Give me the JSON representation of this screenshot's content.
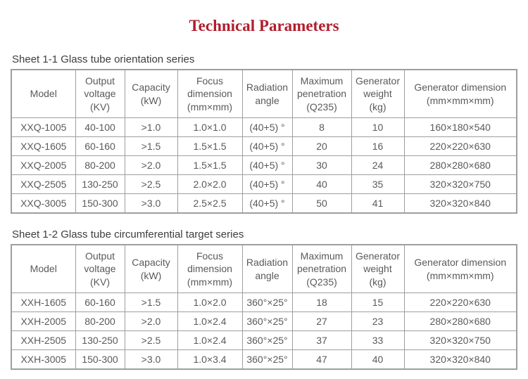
{
  "title": "Technical Parameters",
  "colors": {
    "title": "#b01e2e",
    "table_text": "#5a5a5a",
    "table_border": "#9e9e9e",
    "caption_text": "#3d3d3d",
    "background": "#ffffff"
  },
  "tables": [
    {
      "id": "sheet-1-1",
      "caption": "Sheet 1-1 Glass tube orientation series",
      "columns": [
        {
          "id": "model",
          "lines": [
            "Model"
          ]
        },
        {
          "id": "output-voltage",
          "lines": [
            "Output",
            "voltage",
            "(KV)"
          ]
        },
        {
          "id": "capacity",
          "lines": [
            "Capacity",
            "(kW)"
          ]
        },
        {
          "id": "focus-dimension",
          "lines": [
            "Focus",
            "dimension",
            "(mm×mm)"
          ]
        },
        {
          "id": "radiation-angle",
          "lines": [
            "Radiation",
            "angle"
          ]
        },
        {
          "id": "maximum-penetration",
          "lines": [
            "Maximum",
            "penetration",
            "(Q235)"
          ]
        },
        {
          "id": "generator-weight",
          "lines": [
            "Generator",
            "weight",
            "(kg)"
          ]
        },
        {
          "id": "generator-dimension",
          "lines": [
            "Generator dimension",
            "(mm×mm×mm)"
          ]
        }
      ],
      "rows": [
        [
          "XXQ-1005",
          "40-100",
          ">1.0",
          "1.0×1.0",
          "(40+5) °",
          "8",
          "10",
          "160×180×540"
        ],
        [
          "XXQ-1605",
          "60-160",
          ">1.5",
          "1.5×1.5",
          "(40+5) °",
          "20",
          "16",
          "220×220×630"
        ],
        [
          "XXQ-2005",
          "80-200",
          ">2.0",
          "1.5×1.5",
          "(40+5) °",
          "30",
          "24",
          "280×280×680"
        ],
        [
          "XXQ-2505",
          "130-250",
          ">2.5",
          "2.0×2.0",
          "(40+5) °",
          "40",
          "35",
          "320×320×750"
        ],
        [
          "XXQ-3005",
          "150-300",
          ">3.0",
          "2.5×2.5",
          "(40+5) °",
          "50",
          "41",
          "320×320×840"
        ]
      ]
    },
    {
      "id": "sheet-1-2",
      "caption": "Sheet 1-2 Glass tube circumferential target series",
      "columns": [
        {
          "id": "model",
          "lines": [
            "Model"
          ]
        },
        {
          "id": "output-voltage",
          "lines": [
            "Output",
            "voltage",
            "(KV)"
          ]
        },
        {
          "id": "capacity",
          "lines": [
            "Capacity",
            "(kW)"
          ]
        },
        {
          "id": "focus-dimension",
          "lines": [
            "Focus",
            "dimension",
            "(mm×mm)"
          ]
        },
        {
          "id": "radiation-angle",
          "lines": [
            "Radiation",
            "angle"
          ]
        },
        {
          "id": "maximum-penetration",
          "lines": [
            "Maximum",
            "penetration",
            "(Q235)"
          ]
        },
        {
          "id": "generator-weight",
          "lines": [
            "Generator",
            "weight",
            "(kg)"
          ]
        },
        {
          "id": "generator-dimension",
          "lines": [
            "Generator dimension",
            "(mm×mm×mm)"
          ]
        }
      ],
      "rows": [
        [
          "XXH-1605",
          "60-160",
          ">1.5",
          "1.0×2.0",
          "360°×25°",
          "18",
          "15",
          "220×220×630"
        ],
        [
          "XXH-2005",
          "80-200",
          ">2.0",
          "1.0×2.4",
          "360°×25°",
          "27",
          "23",
          "280×280×680"
        ],
        [
          "XXH-2505",
          "130-250",
          ">2.5",
          "1.0×2.4",
          "360°×25°",
          "37",
          "33",
          "320×320×750"
        ],
        [
          "XXH-3005",
          "150-300",
          ">3.0",
          "1.0×3.4",
          "360°×25°",
          "47",
          "40",
          "320×320×840"
        ]
      ]
    }
  ]
}
